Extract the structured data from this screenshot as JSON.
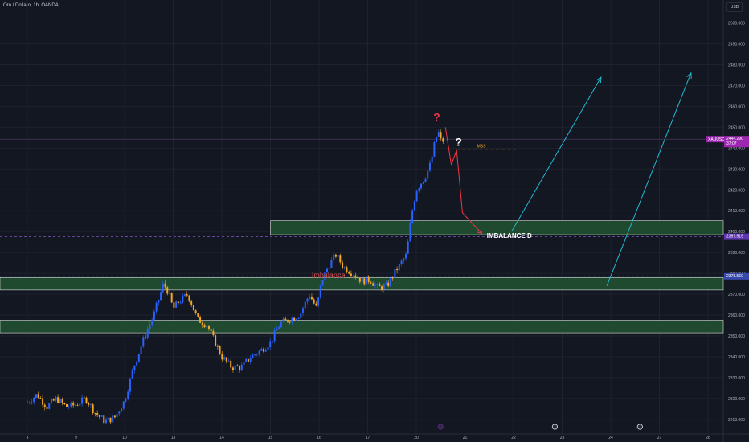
{
  "header": {
    "title": "Oro / Dollaro, 1h, OANDA",
    "currency": "USD"
  },
  "colors": {
    "background": "#131722",
    "grid": "#1e222d",
    "up": "#2962ff",
    "down": "#f5a623",
    "zone_fill": "#1f4a2f",
    "zone_border": "#e0e0e0",
    "arrow_cyan": "#22b8d2",
    "arrow_red": "#f23645",
    "mss": "#f5a623",
    "price_tag": "#9c27b0"
  },
  "chart_data": {
    "type": "candlestick",
    "symbol": "XAUUSD",
    "ylim": [
      2303,
      2511
    ],
    "x_ticks": [
      "8",
      "9",
      "10",
      "13",
      "14",
      "15",
      "16",
      "17",
      "20",
      "21",
      "22",
      "23",
      "24",
      "27",
      "28"
    ],
    "y_ticks": [
      2310,
      2320,
      2330,
      2340,
      2350,
      2360,
      2370,
      2380,
      2390,
      2400,
      2410,
      2420,
      2430,
      2440,
      2450,
      2460,
      2470,
      2480,
      2490,
      2500
    ],
    "y_tick_labels": [
      "2310.000",
      "2320.000",
      "2330.000",
      "2340.000",
      "2350.000",
      "2360.000",
      "2370.000",
      "2380.000",
      "2390.000",
      "2400.000",
      "2410.000",
      "2420.000",
      "2430.000",
      "2440.000",
      "2450.000",
      "2460.000",
      "2470.000",
      "2480.000",
      "2490.000",
      "2500.000"
    ],
    "price_anchors": [
      [
        0.0,
        2318
      ],
      [
        0.2,
        2322
      ],
      [
        0.4,
        2316
      ],
      [
        0.6,
        2320
      ],
      [
        0.8,
        2316
      ],
      [
        1.0,
        2317
      ],
      [
        1.2,
        2320
      ],
      [
        1.4,
        2313
      ],
      [
        1.6,
        2309
      ],
      [
        1.8,
        2311
      ],
      [
        2.0,
        2319
      ],
      [
        2.2,
        2336
      ],
      [
        2.4,
        2349
      ],
      [
        2.6,
        2360
      ],
      [
        2.8,
        2375
      ],
      [
        2.9,
        2371
      ],
      [
        3.0,
        2363
      ],
      [
        3.1,
        2366
      ],
      [
        3.3,
        2370
      ],
      [
        3.5,
        2358
      ],
      [
        3.7,
        2355
      ],
      [
        3.9,
        2345
      ],
      [
        4.0,
        2340
      ],
      [
        4.2,
        2335
      ],
      [
        4.4,
        2335
      ],
      [
        4.6,
        2340
      ],
      [
        4.8,
        2343
      ],
      [
        5.0,
        2347
      ],
      [
        5.2,
        2356
      ],
      [
        5.4,
        2358
      ],
      [
        5.6,
        2360
      ],
      [
        5.8,
        2370
      ],
      [
        5.95,
        2363
      ],
      [
        6.05,
        2376
      ],
      [
        6.2,
        2384
      ],
      [
        6.35,
        2389
      ],
      [
        6.5,
        2383
      ],
      [
        6.7,
        2380
      ],
      [
        6.9,
        2376
      ],
      [
        7.05,
        2377
      ],
      [
        7.2,
        2373
      ],
      [
        7.4,
        2374
      ],
      [
        7.6,
        2382
      ],
      [
        7.8,
        2389
      ],
      [
        7.9,
        2408
      ],
      [
        8.0,
        2420
      ],
      [
        8.2,
        2427
      ],
      [
        8.3,
        2433
      ],
      [
        8.4,
        2445
      ],
      [
        8.48,
        2448
      ],
      [
        8.52,
        2441
      ],
      [
        8.58,
        2446
      ]
    ],
    "current_price": {
      "label": "XAUUSD",
      "price": "2444.290",
      "countdown": "37:07",
      "value": 2444.29
    },
    "price_level": {
      "label": "2397.515",
      "value": 2397.515
    },
    "price_level_2": {
      "label": "2378.560",
      "value": 2378.56
    },
    "zones": [
      {
        "from": 2398.5,
        "to": 2405.2,
        "x_start": 5.0
      },
      {
        "from": 2372,
        "to": 2378,
        "x_start": 0
      },
      {
        "from": 2351.5,
        "to": 2357.5,
        "x_start": 0
      }
    ],
    "annotations": {
      "imbalance_label": "Imbalance",
      "imbalance_d_label": "IMBALANCE D",
      "mss_label": "MSS",
      "question_top": "?",
      "question_mid": "?",
      "mss_value": 2439.5,
      "red_path": [
        [
          8.6,
          2450
        ],
        [
          8.72,
          2432
        ],
        [
          8.83,
          2439
        ],
        [
          8.95,
          2409
        ],
        [
          9.35,
          2399
        ]
      ],
      "cyan_arrows": [
        {
          "from": [
            9.96,
            2400
          ],
          "to": [
            11.8,
            2474
          ]
        },
        {
          "from": [
            11.92,
            2374
          ],
          "to": [
            13.65,
            2476
          ]
        }
      ]
    }
  }
}
